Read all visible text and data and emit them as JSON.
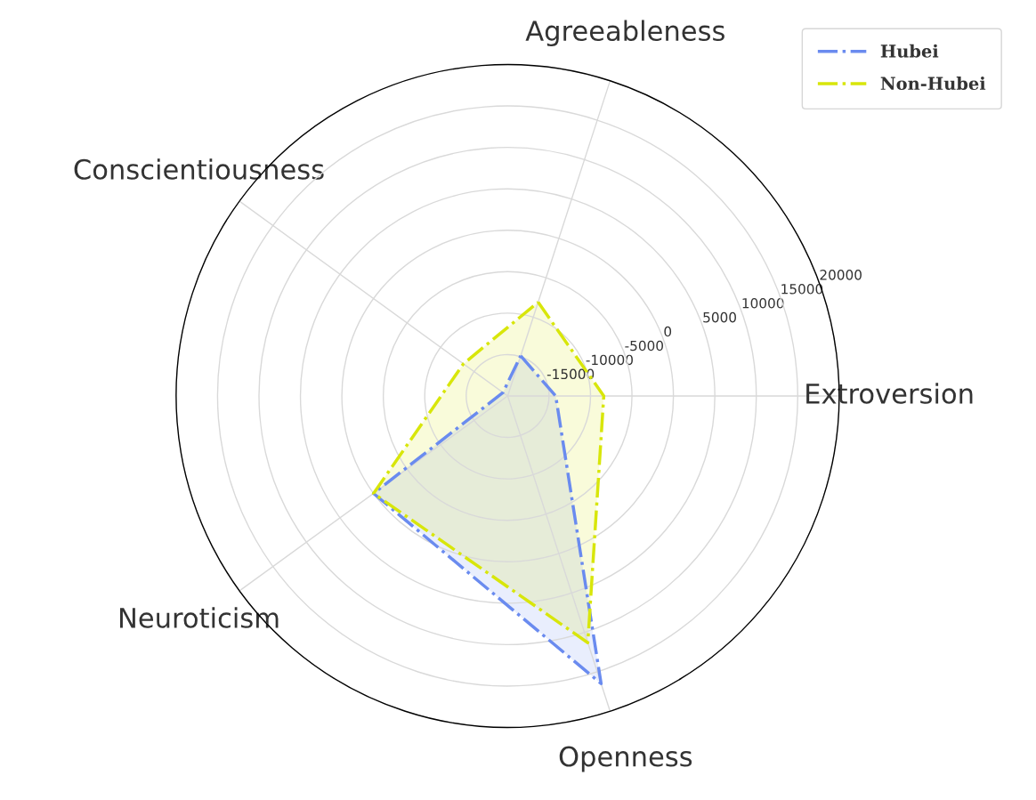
{
  "chart_data": {
    "type": "radar",
    "categories": [
      "Agreeableness",
      "Extroversion",
      "Openness",
      "Neuroticism",
      "Conscientiousness"
    ],
    "series": [
      {
        "name": "Hubei",
        "color": "#6a8bef",
        "values": [
          -14900,
          -14200,
          16500,
          0,
          -19300
        ]
      },
      {
        "name": "Non-Hubei",
        "color": "#d8e60a",
        "values": [
          -8100,
          -8400,
          11300,
          0,
          -13400
        ]
      }
    ],
    "ylim": [
      -20000,
      20000
    ],
    "yticks": [
      -15000,
      -10000,
      -5000,
      0,
      5000,
      10000,
      15000,
      20000
    ],
    "grid": true,
    "legend": "top right",
    "line_style": "dashdot",
    "marker": "none"
  }
}
